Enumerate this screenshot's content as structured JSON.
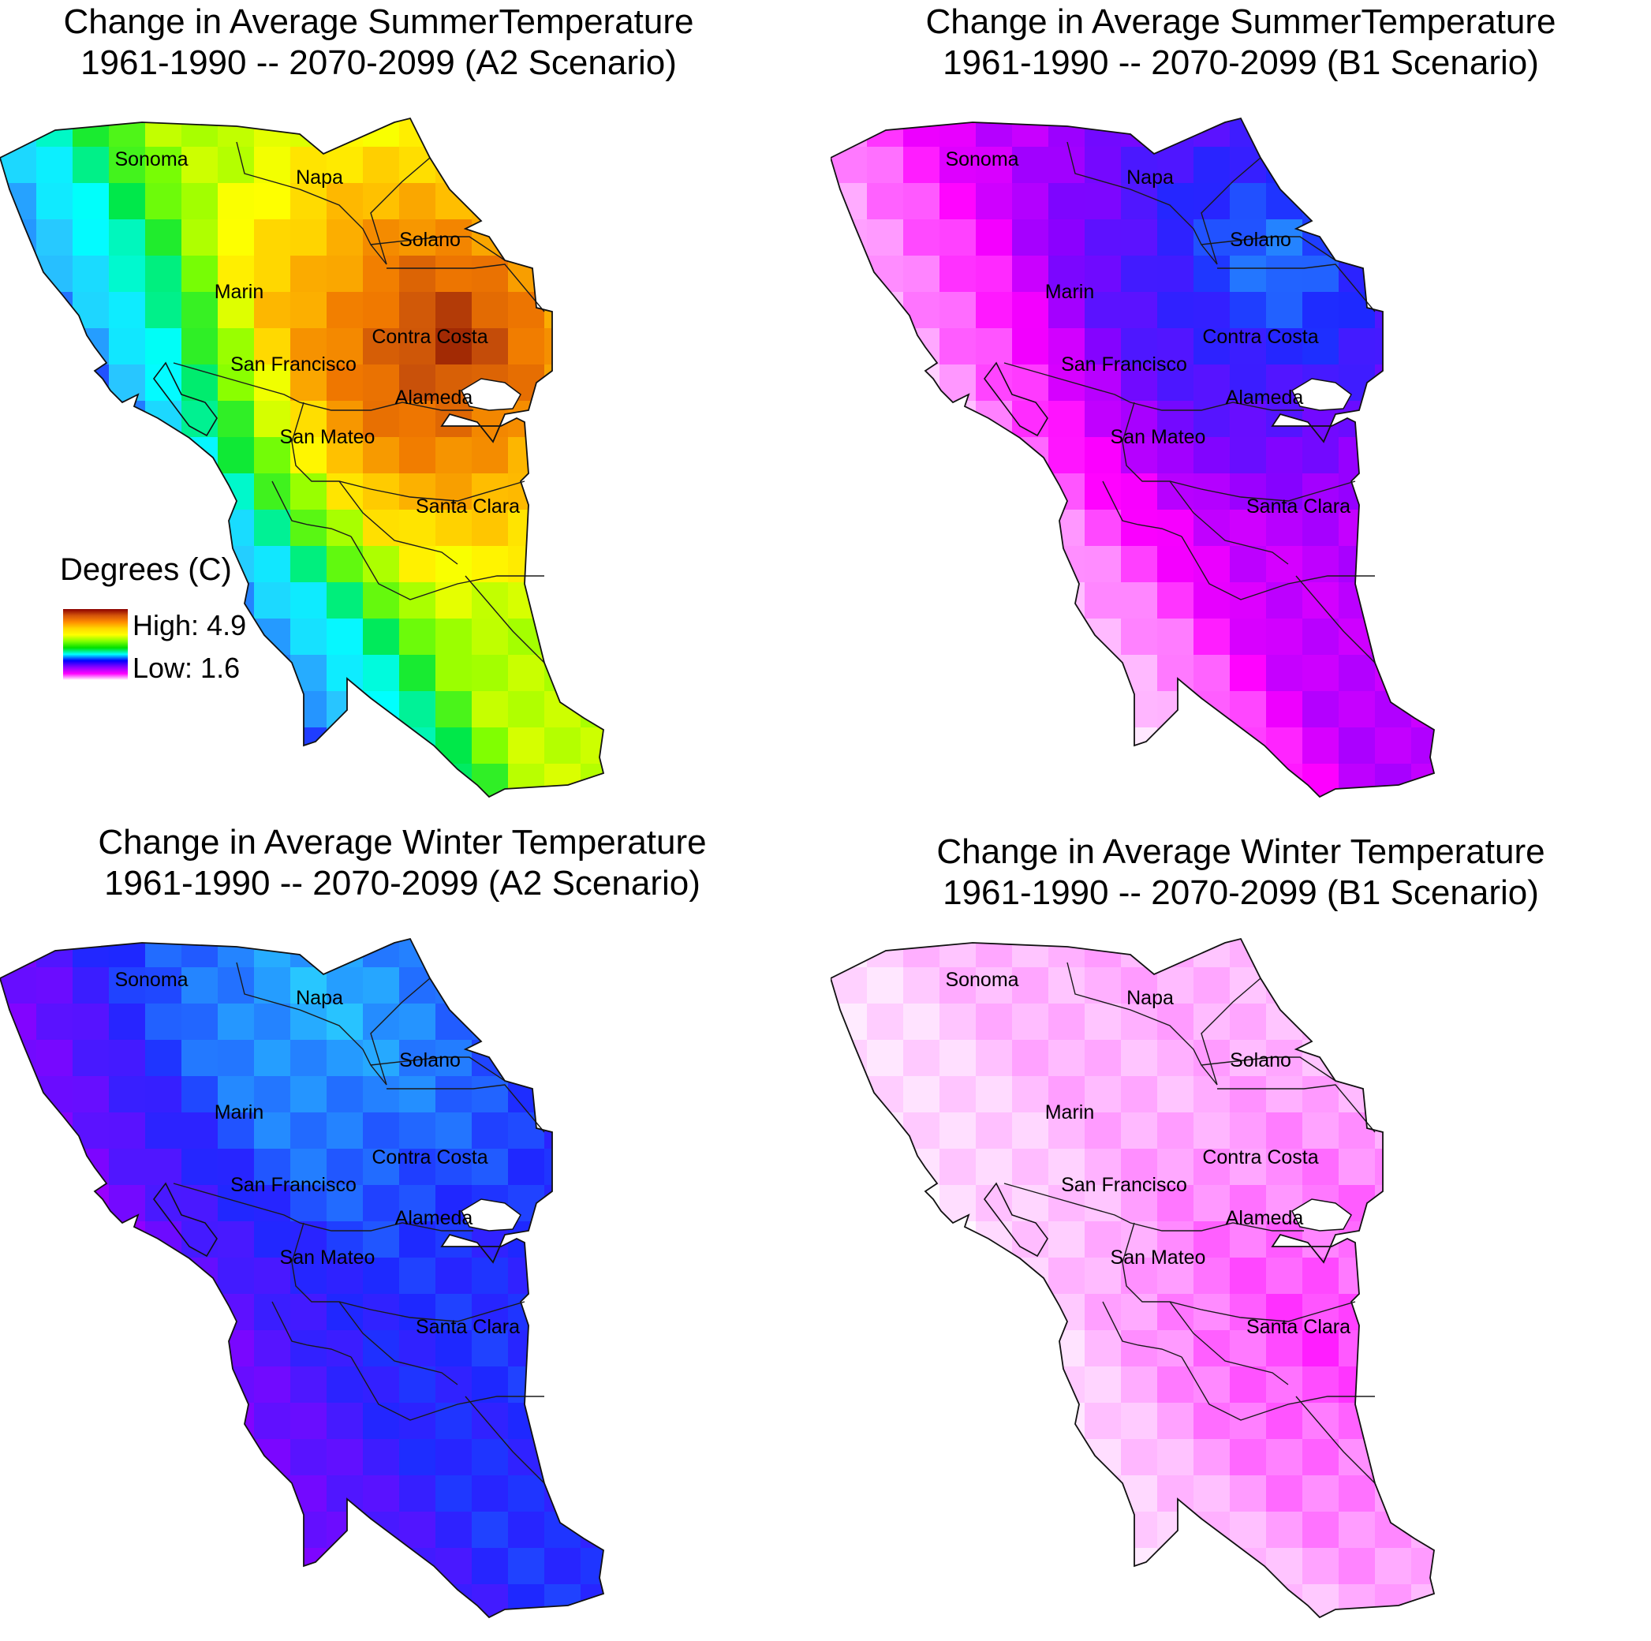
{
  "panels": [
    {
      "title_line1": "Change in Average SummerTemperature",
      "title_line2": "1961-1990 -- 2070-2099 (A2 Scenario)",
      "palette": "rainbow",
      "field": {
        "base": 0.74,
        "peak": 1.0,
        "peak_at": "Contra Costa",
        "coast_low": 0.42,
        "south_low": 0.62
      }
    },
    {
      "title_line1": "Change in Average SummerTemperature",
      "title_line2": "1961-1990 -- 2070-2099 (B1 Scenario)",
      "palette": "rainbow",
      "field": {
        "base": 0.22,
        "peak": 0.42,
        "peak_at": "Solano",
        "coast_low": 0.06,
        "south_low": 0.12
      }
    },
    {
      "title_line1": "Change in Average Winter Temperature",
      "title_line2": "1961-1990 -- 2070-2099 (A2 Scenario)",
      "palette": "rainbow",
      "field": {
        "base": 0.36,
        "peak": 0.45,
        "peak_at": "Napa",
        "coast_low": 0.27,
        "south_low": 0.36
      }
    },
    {
      "title_line1": "Change in Average Winter Temperature",
      "title_line2": "1961-1990 -- 2070-2099 (B1 Scenario)",
      "palette": "rainbow",
      "field": {
        "base": 0.06,
        "peak": 0.13,
        "peak_at": "Santa Clara",
        "coast_low": 0.02,
        "south_low": 0.05
      }
    }
  ],
  "counties": [
    "Sonoma",
    "Napa",
    "Solano",
    "Marin",
    "Contra Costa",
    "San Francisco",
    "Alameda",
    "San Mateo",
    "Santa Clara"
  ],
  "legend": {
    "title": "Degrees (C)",
    "high_label": "High: 4.9",
    "low_label": "Low: 1.6",
    "high_value": 4.9,
    "low_value": 1.6,
    "gradient_colors": [
      "#8b0000",
      "#d4550a",
      "#ff8c00",
      "#ffd700",
      "#ffff00",
      "#80ff00",
      "#00e000",
      "#00ffff",
      "#0000ff",
      "#8b00ff",
      "#ff00ff",
      "#ffffff"
    ]
  }
}
